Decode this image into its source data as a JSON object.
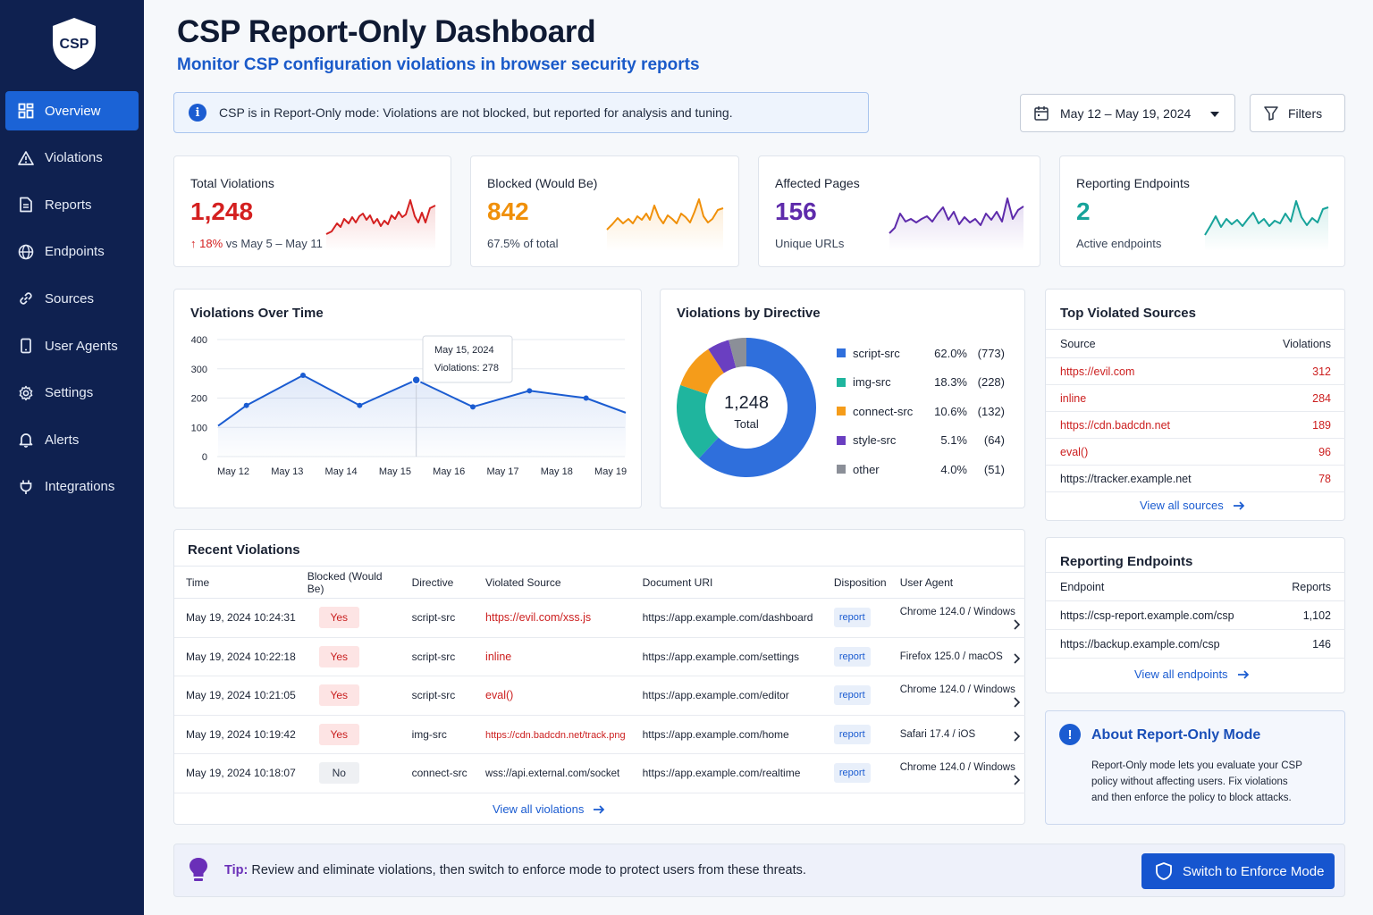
{
  "logo_text": "CSP",
  "sidebar": {
    "items": [
      {
        "label": "Overview",
        "icon": "grid-icon",
        "active": true
      },
      {
        "label": "Violations",
        "icon": "warning-icon"
      },
      {
        "label": "Reports",
        "icon": "document-icon"
      },
      {
        "label": "Endpoints",
        "icon": "globe-icon"
      },
      {
        "label": "Sources",
        "icon": "link-icon"
      },
      {
        "label": "User Agents",
        "icon": "phone-icon"
      },
      {
        "label": "Settings",
        "icon": "gear-icon"
      },
      {
        "label": "Alerts",
        "icon": "bell-icon"
      },
      {
        "label": "Integrations",
        "icon": "plug-icon"
      }
    ]
  },
  "header": {
    "title": "CSP Report-Only Dashboard",
    "subtitle": "Monitor CSP configuration violations in browser security reports"
  },
  "banner": {
    "icon_text": "i",
    "text": "CSP is in Report-Only mode: Violations are not blocked, but reported for analysis and tuning."
  },
  "date_range": "May 12 – May 19, 2024",
  "filters_label": "Filters",
  "kpis": {
    "total": {
      "label": "Total Violations",
      "value": "1,248",
      "delta": "↑ 18%",
      "delta_suffix": " vs May 5 – May 11",
      "color": "#d42020"
    },
    "blocked": {
      "label": "Blocked (Would Be)",
      "value": "842",
      "sub": "67.5% of total",
      "color": "#f0900a"
    },
    "pages": {
      "label": "Affected Pages",
      "value": "156",
      "sub": "Unique URLs",
      "color": "#5e2bab"
    },
    "endpoints": {
      "label": "Reporting Endpoints",
      "value": "2",
      "sub": "Active endpoints",
      "color": "#17a39a"
    }
  },
  "chart_data": [
    {
      "type": "line",
      "title": "Violations Over Time",
      "categories": [
        "May 12",
        "May 13",
        "May 14",
        "May 15",
        "May 16",
        "May 17",
        "May 18",
        "May 19"
      ],
      "x": [
        0,
        0.5,
        1.5,
        2.5,
        3.5,
        4.5,
        5.5,
        6.5,
        7.2
      ],
      "values": [
        105,
        175,
        278,
        175,
        262,
        170,
        225,
        200,
        150
      ],
      "ylim": [
        0,
        400
      ],
      "yticks": [
        0,
        100,
        200,
        300,
        400
      ],
      "tooltip": {
        "date": "May 15, 2024",
        "label": "Violations: 278"
      },
      "color": "#1b5cd1",
      "grid": true
    },
    {
      "type": "pie",
      "title": "Violations by Directive",
      "center_value": "1,248",
      "center_label": "Total",
      "slices": [
        {
          "name": "script-src",
          "percent": "62.0%",
          "count": "(773)",
          "value": 773,
          "color": "#2f6fdc"
        },
        {
          "name": "img-src",
          "percent": "18.3%",
          "count": "(228)",
          "value": 228,
          "color": "#1fb59e"
        },
        {
          "name": "connect-src",
          "percent": "10.6%",
          "count": "(132)",
          "value": 132,
          "color": "#f59c1a"
        },
        {
          "name": "style-src",
          "percent": "5.1%",
          "count": "(64)",
          "value": 64,
          "color": "#6a3fc1"
        },
        {
          "name": "other",
          "percent": "4.0%",
          "count": "(51)",
          "value": 51,
          "color": "#8b8f98"
        }
      ]
    }
  ],
  "recent": {
    "title": "Recent Violations",
    "columns": [
      "Time",
      "Blocked (Would Be)",
      "Directive",
      "Violated Source",
      "Document URI",
      "Disposition",
      "User Agent"
    ],
    "rows": [
      {
        "time": "May 19, 2024 10:24:31",
        "blocked": "Yes",
        "directive": "script-src",
        "source": "https://evil.com/xss.js",
        "uri": "https://app.example.com/dashboard",
        "disposition": "report",
        "agent": "Chrome 124.0 / Windows"
      },
      {
        "time": "May 19, 2024 10:22:18",
        "blocked": "Yes",
        "directive": "script-src",
        "source": "inline",
        "uri": "https://app.example.com/settings",
        "disposition": "report",
        "agent": "Firefox 125.0 / macOS"
      },
      {
        "time": "May 19, 2024 10:21:05",
        "blocked": "Yes",
        "directive": "script-src",
        "source": "eval()",
        "uri": "https://app.example.com/editor",
        "disposition": "report",
        "agent": "Chrome 124.0 / Windows"
      },
      {
        "time": "May 19, 2024 10:19:42",
        "blocked": "Yes",
        "directive": "img-src",
        "source": "https://cdn.badcdn.net/track.png",
        "uri": "https://app.example.com/home",
        "disposition": "report",
        "agent": "Safari 17.4 / iOS"
      },
      {
        "time": "May 19, 2024 10:18:07",
        "blocked": "No",
        "directive": "connect-src",
        "source": "wss://api.external.com/socket",
        "uri": "https://app.example.com/realtime",
        "disposition": "report",
        "agent": "Chrome 124.0 / Windows"
      }
    ],
    "view_all": "View all violations"
  },
  "top_sources": {
    "title": "Top Violated Sources",
    "col_source": "Source",
    "col_count": "Violations",
    "rows": [
      {
        "source": "https://evil.com",
        "count": "312",
        "malicious": true
      },
      {
        "source": "inline",
        "count": "284",
        "malicious": true
      },
      {
        "source": "https://cdn.badcdn.net",
        "count": "189",
        "malicious": true
      },
      {
        "source": "eval()",
        "count": "96",
        "malicious": true
      },
      {
        "source": "https://tracker.example.net",
        "count": "78",
        "malicious": false
      }
    ],
    "view_all": "View all sources"
  },
  "reporting_endpoints": {
    "title": "Reporting Endpoints",
    "col_endpoint": "Endpoint",
    "col_reports": "Reports",
    "rows": [
      {
        "endpoint": "https://csp-report.example.com/csp",
        "reports": "1,102"
      },
      {
        "endpoint": "https://backup.example.com/csp",
        "reports": "146"
      }
    ],
    "view_all": "View all endpoints"
  },
  "about": {
    "title": "About Report-Only Mode",
    "icon_text": "!",
    "lines": [
      "Report-Only mode lets you evaluate your CSP",
      "policy without affecting users. Fix violations",
      "and then enforce the policy to block attacks."
    ]
  },
  "tip": {
    "label": "Tip:",
    "text": "Review and eliminate violations, then switch to enforce mode to protect users from these threats."
  },
  "enforce_button": "Switch to Enforce Mode"
}
